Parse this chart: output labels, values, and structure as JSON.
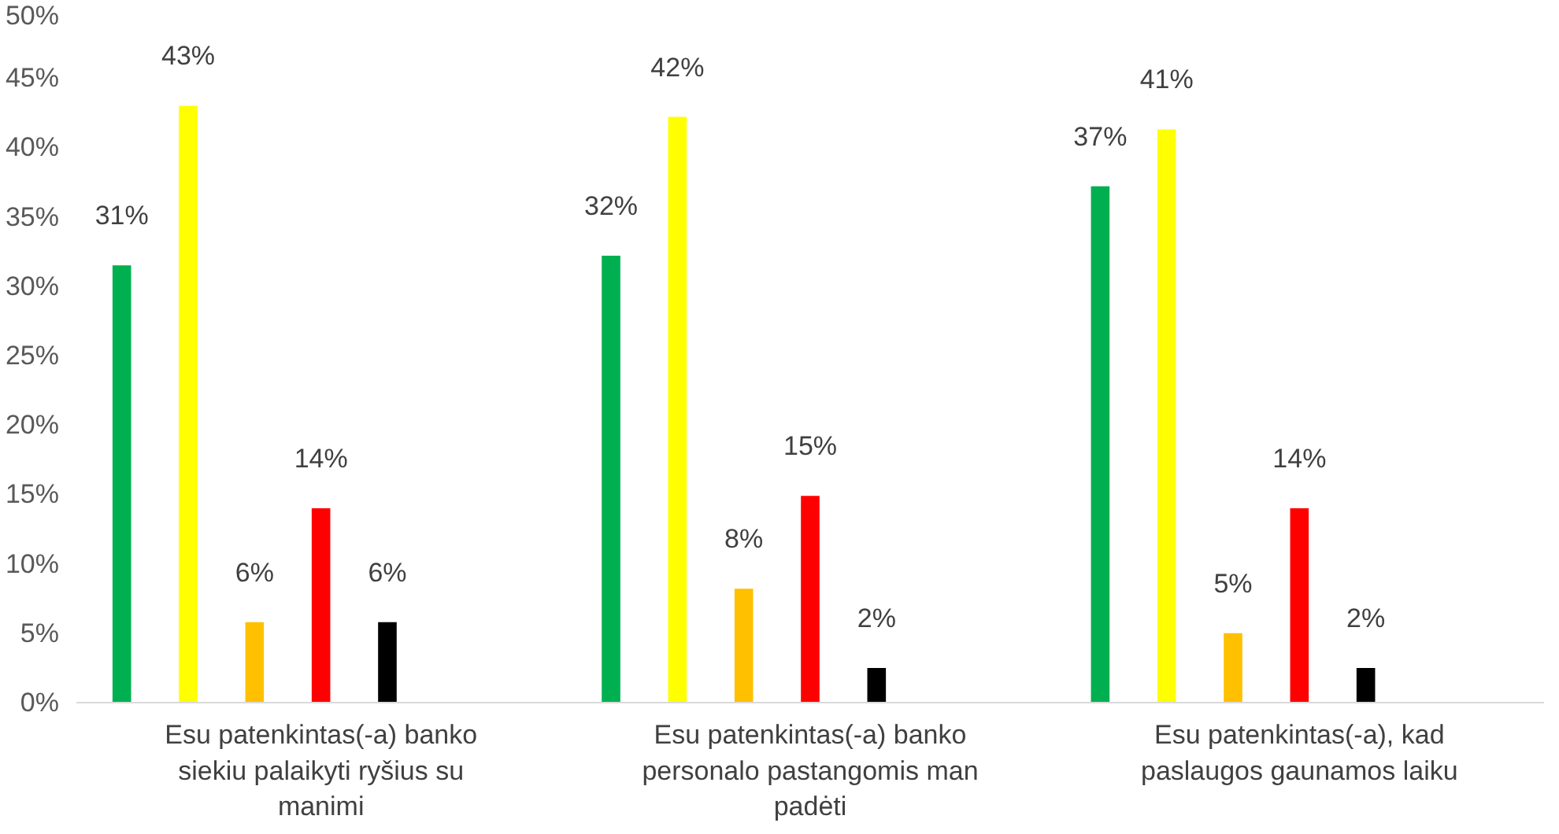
{
  "chart_data": {
    "type": "bar",
    "categories": [
      "Esu patenkintas(-a) banko siekiu palaikyti ryšius su manimi",
      "Esu patenkintas(-a) banko personalo pastangomis man padėti",
      "Esu patenkintas(-a), kad paslaugos gaunamos laiku"
    ],
    "series": [
      {
        "color": "#00b050",
        "values": [
          31.5,
          32.2,
          37.2
        ],
        "value_labels": [
          "31%",
          "32%",
          "37%"
        ]
      },
      {
        "color": "#ffff00",
        "values": [
          43,
          42.2,
          41.3
        ],
        "value_labels": [
          "43%",
          "42%",
          "41%"
        ]
      },
      {
        "color": "#ffc000",
        "values": [
          5.8,
          8.2,
          5
        ],
        "value_labels": [
          "6%",
          "8%",
          "5%"
        ]
      },
      {
        "color": "#ff0000",
        "values": [
          14,
          14.9,
          14
        ],
        "value_labels": [
          "14%",
          "15%",
          "14%"
        ]
      },
      {
        "color": "#000000",
        "values": [
          5.8,
          2.5,
          2.5
        ],
        "value_labels": [
          "6%",
          "2%",
          "2%"
        ]
      }
    ],
    "ylim": [
      0,
      50
    ],
    "yticks": [
      {
        "value": 0,
        "label": "0%"
      },
      {
        "value": 5,
        "label": "5%"
      },
      {
        "value": 10,
        "label": "10%"
      },
      {
        "value": 15,
        "label": "15%"
      },
      {
        "value": 20,
        "label": "20%"
      },
      {
        "value": 25,
        "label": "25%"
      },
      {
        "value": 30,
        "label": "30%"
      },
      {
        "value": 35,
        "label": "35%"
      },
      {
        "value": 40,
        "label": "40%"
      },
      {
        "value": 45,
        "label": "45%"
      },
      {
        "value": 50,
        "label": "50%"
      }
    ],
    "grid": false
  }
}
